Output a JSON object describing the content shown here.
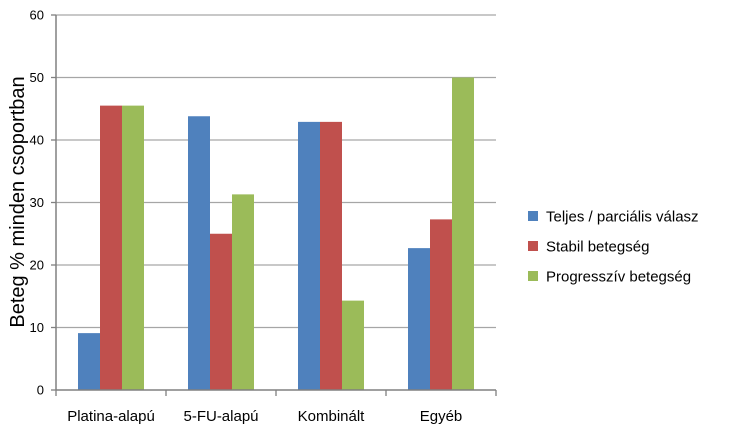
{
  "chart_data": {
    "type": "bar",
    "title": "",
    "xlabel": "",
    "ylabel": "Beteg % minden csoportban",
    "ylim": [
      0,
      60
    ],
    "yticks": [
      0,
      10,
      20,
      30,
      40,
      50,
      60
    ],
    "grid": true,
    "legend_position": "right",
    "categories": [
      "Platina-alapú",
      "5-FU-alapú",
      "Kombinált",
      "Egyéb"
    ],
    "series": [
      {
        "name": "Teljes / parciális válasz",
        "color": "#4F81BD",
        "values": [
          9.1,
          43.8,
          42.9,
          22.7
        ]
      },
      {
        "name": "Stabil betegség",
        "color": "#C0504D",
        "values": [
          45.5,
          25.0,
          42.9,
          27.3
        ]
      },
      {
        "name": "Progresszív betegség",
        "color": "#9BBB59",
        "values": [
          45.5,
          31.3,
          14.3,
          50.0
        ]
      }
    ]
  }
}
